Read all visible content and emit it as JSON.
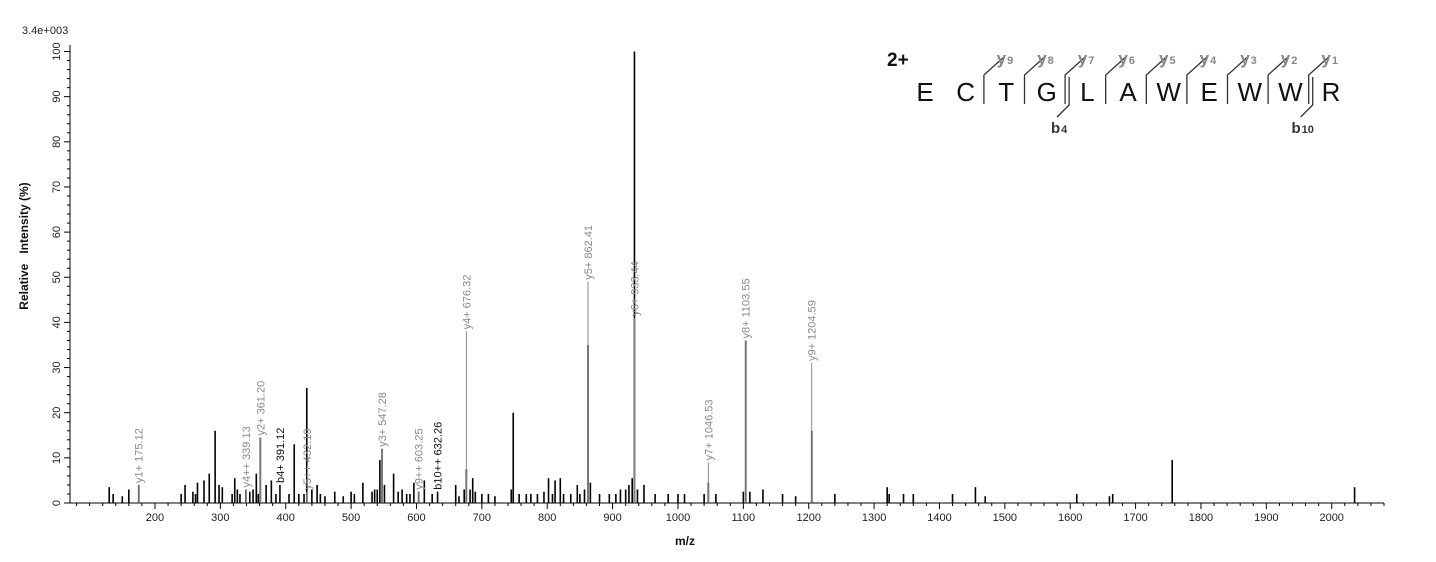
{
  "chart_data": {
    "type": "bar",
    "scale_label": "3.4e+003",
    "xlabel": "m/z",
    "ylabel": "Relative   Intensity (%)",
    "xlim": [
      70,
      2080
    ],
    "ylim": [
      0,
      101
    ],
    "x_major_ticks": [
      200,
      300,
      400,
      500,
      600,
      700,
      800,
      900,
      1000,
      1100,
      1200,
      1300,
      1400,
      1500,
      1600,
      1700,
      1800,
      1900,
      2000
    ],
    "y_ticks": [
      0,
      10,
      20,
      30,
      40,
      50,
      60,
      70,
      80,
      90,
      100
    ],
    "grid": false,
    "peaks": [
      {
        "mz": 130,
        "i": 3.5
      },
      {
        "mz": 136,
        "i": 2
      },
      {
        "mz": 150,
        "i": 1.5
      },
      {
        "mz": 160,
        "i": 3
      },
      {
        "mz": 175.12,
        "i": 4
      },
      {
        "mz": 240,
        "i": 2
      },
      {
        "mz": 246,
        "i": 4
      },
      {
        "mz": 258,
        "i": 2.5
      },
      {
        "mz": 262,
        "i": 2
      },
      {
        "mz": 265,
        "i": 4.5
      },
      {
        "mz": 275,
        "i": 5
      },
      {
        "mz": 283,
        "i": 6.5
      },
      {
        "mz": 292,
        "i": 16
      },
      {
        "mz": 298,
        "i": 4
      },
      {
        "mz": 303,
        "i": 3.5
      },
      {
        "mz": 318,
        "i": 2
      },
      {
        "mz": 322,
        "i": 5.5
      },
      {
        "mz": 326,
        "i": 3
      },
      {
        "mz": 330,
        "i": 2
      },
      {
        "mz": 339.13,
        "i": 3
      },
      {
        "mz": 345,
        "i": 2.5
      },
      {
        "mz": 350,
        "i": 3
      },
      {
        "mz": 355,
        "i": 6.5
      },
      {
        "mz": 358,
        "i": 2
      },
      {
        "mz": 361.2,
        "i": 14.5
      },
      {
        "mz": 370,
        "i": 4
      },
      {
        "mz": 378,
        "i": 5
      },
      {
        "mz": 385,
        "i": 2
      },
      {
        "mz": 391.12,
        "i": 4
      },
      {
        "mz": 405,
        "i": 2
      },
      {
        "mz": 413,
        "i": 13
      },
      {
        "mz": 420,
        "i": 2
      },
      {
        "mz": 428,
        "i": 2
      },
      {
        "mz": 432.19,
        "i": 25.5
      },
      {
        "mz": 440,
        "i": 3
      },
      {
        "mz": 448,
        "i": 4
      },
      {
        "mz": 453,
        "i": 2
      },
      {
        "mz": 460,
        "i": 1.5
      },
      {
        "mz": 475,
        "i": 2.5
      },
      {
        "mz": 488,
        "i": 1.5
      },
      {
        "mz": 500,
        "i": 2.5
      },
      {
        "mz": 505,
        "i": 2
      },
      {
        "mz": 518,
        "i": 4.5
      },
      {
        "mz": 532,
        "i": 2.5
      },
      {
        "mz": 536,
        "i": 3
      },
      {
        "mz": 540,
        "i": 3
      },
      {
        "mz": 544,
        "i": 9.5
      },
      {
        "mz": 547.28,
        "i": 12
      },
      {
        "mz": 551,
        "i": 4
      },
      {
        "mz": 565,
        "i": 6.5
      },
      {
        "mz": 572,
        "i": 2.5
      },
      {
        "mz": 578,
        "i": 3
      },
      {
        "mz": 585,
        "i": 2
      },
      {
        "mz": 590,
        "i": 2
      },
      {
        "mz": 596,
        "i": 4.5
      },
      {
        "mz": 603.25,
        "i": 2.5
      },
      {
        "mz": 612,
        "i": 5
      },
      {
        "mz": 624,
        "i": 2
      },
      {
        "mz": 632.26,
        "i": 2.5
      },
      {
        "mz": 660,
        "i": 4
      },
      {
        "mz": 665,
        "i": 1.5
      },
      {
        "mz": 673,
        "i": 3
      },
      {
        "mz": 676.32,
        "i": 7.5
      },
      {
        "mz": 682,
        "i": 3
      },
      {
        "mz": 686,
        "i": 5.5
      },
      {
        "mz": 690,
        "i": 2.5
      },
      {
        "mz": 700,
        "i": 2
      },
      {
        "mz": 710,
        "i": 2
      },
      {
        "mz": 720,
        "i": 1.5
      },
      {
        "mz": 745,
        "i": 3
      },
      {
        "mz": 748,
        "i": 20
      },
      {
        "mz": 757,
        "i": 2
      },
      {
        "mz": 768,
        "i": 2
      },
      {
        "mz": 775,
        "i": 2
      },
      {
        "mz": 785,
        "i": 2
      },
      {
        "mz": 795,
        "i": 2.5
      },
      {
        "mz": 802,
        "i": 5.5
      },
      {
        "mz": 808,
        "i": 2
      },
      {
        "mz": 812,
        "i": 5
      },
      {
        "mz": 820,
        "i": 5.5
      },
      {
        "mz": 825,
        "i": 2
      },
      {
        "mz": 836,
        "i": 2
      },
      {
        "mz": 846,
        "i": 4
      },
      {
        "mz": 850,
        "i": 2
      },
      {
        "mz": 857,
        "i": 3
      },
      {
        "mz": 862.41,
        "i": 35
      },
      {
        "mz": 866,
        "i": 4.5
      },
      {
        "mz": 880,
        "i": 2
      },
      {
        "mz": 895,
        "i": 2
      },
      {
        "mz": 905,
        "i": 2
      },
      {
        "mz": 912,
        "i": 3
      },
      {
        "mz": 920,
        "i": 3
      },
      {
        "mz": 925,
        "i": 4
      },
      {
        "mz": 930,
        "i": 5.5
      },
      {
        "mz": 933.44,
        "i": 100
      },
      {
        "mz": 938,
        "i": 3
      },
      {
        "mz": 948,
        "i": 4
      },
      {
        "mz": 965,
        "i": 2
      },
      {
        "mz": 985,
        "i": 2
      },
      {
        "mz": 1000,
        "i": 2
      },
      {
        "mz": 1010,
        "i": 2
      },
      {
        "mz": 1040,
        "i": 2
      },
      {
        "mz": 1046.53,
        "i": 4.5
      },
      {
        "mz": 1058,
        "i": 2
      },
      {
        "mz": 1100,
        "i": 2.5
      },
      {
        "mz": 1103.55,
        "i": 36
      },
      {
        "mz": 1110,
        "i": 2.5
      },
      {
        "mz": 1130,
        "i": 3
      },
      {
        "mz": 1160,
        "i": 2
      },
      {
        "mz": 1180,
        "i": 1.5
      },
      {
        "mz": 1204.59,
        "i": 16
      },
      {
        "mz": 1240,
        "i": 2
      },
      {
        "mz": 1320,
        "i": 3.5
      },
      {
        "mz": 1323,
        "i": 2
      },
      {
        "mz": 1345,
        "i": 2
      },
      {
        "mz": 1360,
        "i": 2
      },
      {
        "mz": 1420,
        "i": 2
      },
      {
        "mz": 1455,
        "i": 3.5
      },
      {
        "mz": 1470,
        "i": 1.5
      },
      {
        "mz": 1610,
        "i": 2
      },
      {
        "mz": 1660,
        "i": 1.5
      },
      {
        "mz": 1665,
        "i": 2
      },
      {
        "mz": 1756,
        "i": 9.5
      },
      {
        "mz": 2035,
        "i": 3.5
      }
    ],
    "annotations": [
      {
        "mz": 175.12,
        "i": 4,
        "text": "y1+ 175.12",
        "kind": "y"
      },
      {
        "mz": 339.13,
        "i": 3,
        "text": "y4++ 339.13",
        "kind": "y"
      },
      {
        "mz": 361.2,
        "i": 14.5,
        "text": "y2+ 361.20",
        "kind": "y"
      },
      {
        "mz": 391.12,
        "i": 4,
        "text": "b4+ 391.12",
        "kind": "b"
      },
      {
        "mz": 432.19,
        "i": 2.5,
        "text": "y5++ 432.19",
        "kind": "y"
      },
      {
        "mz": 547.28,
        "i": 12,
        "text": "y3+ 547.28",
        "kind": "y"
      },
      {
        "mz": 603.25,
        "i": 2.5,
        "text": "y9++ 603.25",
        "kind": "y"
      },
      {
        "mz": 632.26,
        "i": 2.5,
        "text": "b10++ 632.26",
        "kind": "b"
      },
      {
        "mz": 676.32,
        "i": 38,
        "text": "y4+ 676.32",
        "kind": "y"
      },
      {
        "mz": 862.41,
        "i": 49,
        "text": "y5+ 862.41",
        "kind": "y"
      },
      {
        "mz": 933.44,
        "i": 41,
        "text": "y6+ 933.44",
        "kind": "y"
      },
      {
        "mz": 1046.53,
        "i": 9,
        "text": "y7+ 1046.53",
        "kind": "y"
      },
      {
        "mz": 1103.55,
        "i": 36,
        "text": "y8+ 1103.55",
        "kind": "y"
      },
      {
        "mz": 1204.59,
        "i": 31,
        "text": "y9+ 1204.59",
        "kind": "y"
      }
    ]
  },
  "sequence": {
    "charge": "2+",
    "residues": [
      "E",
      "C",
      "T",
      "G",
      "L",
      "A",
      "W",
      "E",
      "W",
      "W",
      "R"
    ],
    "y_ions": [
      {
        "letter": "y",
        "num": "9"
      },
      {
        "letter": "y",
        "num": "8"
      },
      {
        "letter": "y",
        "num": "7"
      },
      {
        "letter": "y",
        "num": "6"
      },
      {
        "letter": "y",
        "num": "5"
      },
      {
        "letter": "y",
        "num": "4"
      },
      {
        "letter": "y",
        "num": "3"
      },
      {
        "letter": "y",
        "num": "2"
      },
      {
        "letter": "y",
        "num": "1"
      }
    ],
    "b_ions": [
      {
        "letter": "b",
        "num": "4",
        "after_residue": 4
      },
      {
        "letter": "b",
        "num": "10",
        "after_residue": 10
      }
    ]
  },
  "colors": {
    "y_ion": "#8a8a8a",
    "b_ion": "#111111",
    "peak": "#000000",
    "axis": "#000000"
  }
}
